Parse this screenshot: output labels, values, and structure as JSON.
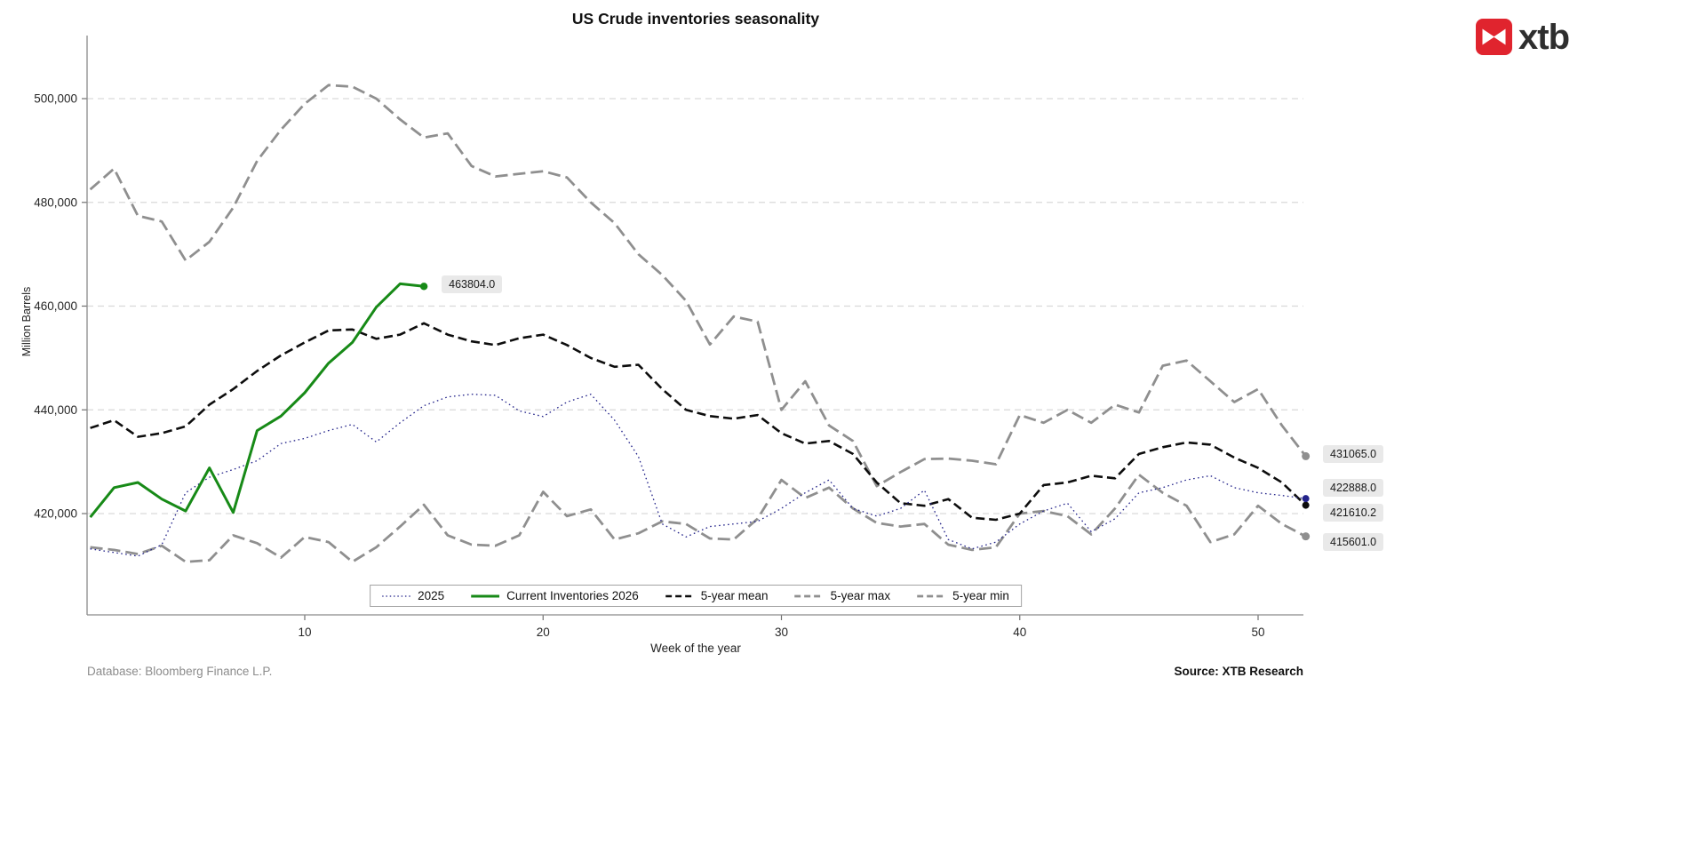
{
  "title": "US Crude inventories seasonality",
  "logo": {
    "text": "xtb",
    "accent_color": "#e0242e"
  },
  "footer": {
    "left": "Database: Bloomberg Finance L.P.",
    "right": "Source: XTB Research"
  },
  "chart_data": {
    "type": "line",
    "title": "US Crude inventories seasonality",
    "xlabel": "Week of the year",
    "ylabel": "Million Barrels",
    "x_ticks": [
      10,
      20,
      30,
      40,
      50
    ],
    "y_ticks": [
      420000,
      440000,
      460000,
      480000,
      500000
    ],
    "xlim": [
      1,
      53.8
    ],
    "ylim": [
      400500,
      512200
    ],
    "grid": "horizontal dashed",
    "legend_position": "bottom center",
    "series": [
      {
        "name": "2025",
        "color": "#23238a",
        "style": "dotted",
        "dash": "1.6 3.4",
        "line_width": 1.3,
        "marker_r": 4,
        "values": [
          413200,
          412500,
          411800,
          414000,
          424000,
          427000,
          428500,
          430200,
          433500,
          434500,
          436000,
          437200,
          433800,
          437500,
          440800,
          442500,
          443000,
          442800,
          439800,
          438700,
          441500,
          443000,
          438000,
          431000,
          418000,
          415500,
          417500,
          418000,
          418500,
          421000,
          424000,
          426500,
          421000,
          419500,
          421000,
          424500,
          415000,
          413200,
          414500,
          418000,
          420500,
          422000,
          416500,
          419000,
          424000,
          425000,
          426500,
          427300,
          425000,
          424000,
          423500,
          422888
        ]
      },
      {
        "name": "Current Inventories 2026",
        "color": "#178a17",
        "style": "solid",
        "dash": "",
        "line_width": 3,
        "marker_r": 4.2,
        "values": [
          419300,
          425000,
          426000,
          422800,
          420500,
          428800,
          420200,
          436000,
          438800,
          443300,
          449000,
          453000,
          459800,
          464300,
          463804
        ]
      },
      {
        "name": "5-year mean",
        "color": "#0d0d0d",
        "style": "dashed",
        "dash": "10 5",
        "line_width": 2.6,
        "marker_r": 4,
        "values": [
          436500,
          438000,
          434800,
          435500,
          436800,
          441000,
          444000,
          447500,
          450500,
          453000,
          455300,
          455500,
          453700,
          454500,
          456700,
          454500,
          453200,
          452500,
          453800,
          454500,
          452500,
          450000,
          448300,
          448700,
          444000,
          440000,
          438800,
          438300,
          439000,
          435500,
          433500,
          434000,
          431500,
          426000,
          422000,
          421500,
          422800,
          419200,
          418800,
          420000,
          425500,
          426000,
          427300,
          426800,
          431500,
          432800,
          433700,
          433300,
          430800,
          428800,
          426000,
          421610.2
        ]
      },
      {
        "name": "5-year max",
        "color": "#8f8f8f",
        "style": "dashed",
        "dash": "14 6",
        "line_width": 2.8,
        "marker_r": 4.5,
        "values": [
          482500,
          486500,
          477400,
          476300,
          468800,
          472400,
          479000,
          488000,
          494000,
          499000,
          502600,
          502300,
          500000,
          496000,
          492500,
          493300,
          487000,
          485000,
          485500,
          486000,
          484800,
          480000,
          476000,
          470000,
          466000,
          461000,
          452600,
          458000,
          457000,
          440000,
          445500,
          437000,
          434000,
          425300,
          428000,
          430500,
          430600,
          430200,
          429500,
          439000,
          437500,
          440000,
          437500,
          441000,
          439500,
          448500,
          449500,
          445500,
          441500,
          444000,
          437000,
          431065
        ]
      },
      {
        "name": "5-year min",
        "color": "#8f8f8f",
        "style": "dashed",
        "dash": "14 6",
        "line_width": 2.8,
        "marker_r": 4.5,
        "values": [
          413500,
          413000,
          412200,
          413800,
          410700,
          411000,
          415800,
          414300,
          411500,
          415500,
          414500,
          410700,
          413500,
          417500,
          421700,
          415800,
          414000,
          413800,
          415800,
          424200,
          419500,
          420800,
          415000,
          416200,
          418500,
          418000,
          415200,
          415000,
          419000,
          426500,
          423000,
          425000,
          421000,
          418200,
          417500,
          418000,
          414000,
          413000,
          413500,
          420000,
          420500,
          419500,
          416000,
          421000,
          427500,
          424000,
          421500,
          414500,
          416000,
          421500,
          418000,
          415601
        ]
      }
    ],
    "annotations": [
      {
        "text": "463804.0",
        "week": 15,
        "value": 463804,
        "attached_to": "Current Inventories 2026",
        "dy": 0
      },
      {
        "text": "431065.0",
        "value": 431065,
        "attached_to": "5-year max",
        "position": "right-edge",
        "dy": 0
      },
      {
        "text": "422888.0",
        "value": 422888,
        "attached_to": "2025",
        "position": "right-edge",
        "dy": -10
      },
      {
        "text": "421610.2",
        "value": 421610.2,
        "attached_to": "5-year mean",
        "position": "right-edge",
        "dy": 10
      },
      {
        "text": "415601.0",
        "value": 415601,
        "attached_to": "5-year min",
        "position": "right-edge",
        "dy": 8
      }
    ]
  }
}
